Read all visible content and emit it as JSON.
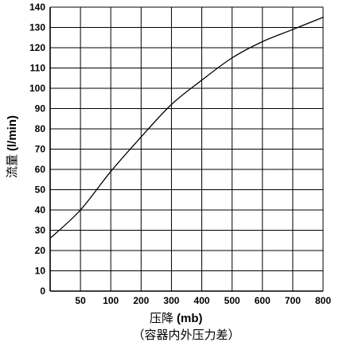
{
  "chart_data": {
    "type": "line",
    "title": "",
    "xlabel": {
      "main": "压降",
      "unit": "(mb)",
      "note": "（容器内外压力差）"
    },
    "ylabel": {
      "main": "流量",
      "unit": "(l/min)"
    },
    "x_ticks": [
      "50",
      "100",
      "200",
      "300",
      "400",
      "500",
      "600",
      "700",
      "800"
    ],
    "y_ticks": [
      "0",
      "10",
      "20",
      "30",
      "40",
      "50",
      "60",
      "70",
      "80",
      "90",
      "100",
      "110",
      "120",
      "130",
      "140"
    ],
    "ylim": [
      0,
      140
    ],
    "grid": true,
    "series": [
      {
        "x_positions": [
          0,
          1,
          2,
          3,
          4,
          5,
          6,
          7,
          8,
          9
        ],
        "x_values": [
          "0",
          "50",
          "100",
          "200",
          "300",
          "400",
          "500",
          "600",
          "700",
          "800"
        ],
        "values": [
          26,
          40,
          59,
          76,
          92,
          104,
          115,
          123,
          129,
          135
        ]
      }
    ]
  }
}
